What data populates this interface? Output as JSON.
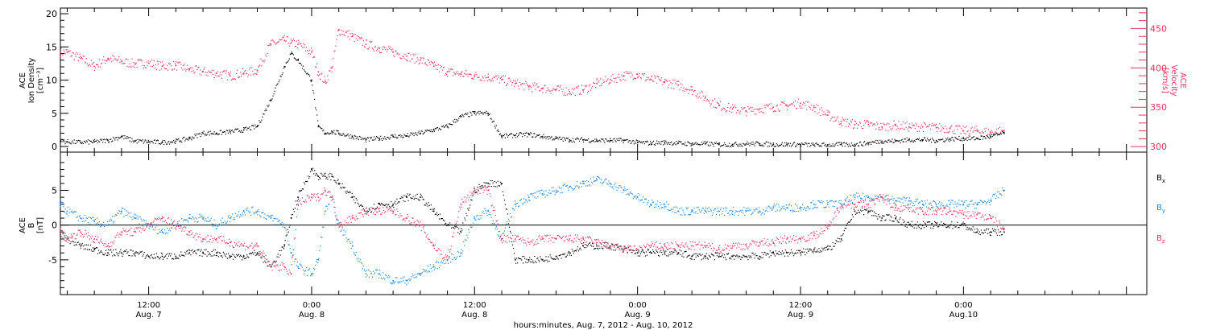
{
  "colors": {
    "black": "#000000",
    "pink": "#e8345f",
    "blue": "#1a86e0",
    "axis": "#000000"
  },
  "footer": {
    "xlabel": "hours:minutes, Aug.  7, 2012 - Aug. 10, 2012"
  },
  "chart_data": [
    {
      "type": "scatter",
      "panel": "top",
      "ylabel_left": [
        "ACE",
        "Ion Density",
        "[cm⁻³]"
      ],
      "ylabel_right": [
        "ACE",
        "Velocity",
        "[km/s]"
      ],
      "x_unit": "hours since Aug. 7, 2012 00:00",
      "xlim": [
        5.5,
        85.5
      ],
      "ylim_left": [
        0,
        20
      ],
      "ylim_right": [
        293,
        476
      ],
      "yticks_left": [
        0,
        5,
        10,
        15,
        20
      ],
      "yticks_right": [
        300,
        350,
        400,
        450
      ],
      "xticks": [
        {
          "x": 12,
          "time": "12:00",
          "date": "Aug. 7"
        },
        {
          "x": 24,
          "time": "0:00",
          "date": "Aug. 8"
        },
        {
          "x": 36,
          "time": "12:00",
          "date": "Aug. 8"
        },
        {
          "x": 48,
          "time": "0:00",
          "date": "Aug. 9"
        },
        {
          "x": 60,
          "time": "12:00",
          "date": "Aug. 9"
        },
        {
          "x": 72,
          "time": "0:00",
          "date": "Aug.10"
        }
      ],
      "series": [
        {
          "color": "pink",
          "axis": "right",
          "x": [
            5.5,
            6,
            7,
            8,
            9,
            10,
            11,
            12,
            13,
            14,
            15,
            16,
            17,
            18,
            19,
            20,
            21,
            22,
            22.5,
            23,
            24,
            24.5,
            25,
            25.5,
            26,
            27,
            28,
            29,
            30,
            31,
            32,
            33,
            34,
            35,
            36,
            37,
            38,
            39,
            40,
            41,
            42,
            43,
            44,
            45,
            46,
            47,
            48,
            49,
            50,
            51,
            52,
            53,
            54,
            55,
            56,
            57,
            58,
            59,
            60,
            61,
            62,
            63,
            64,
            65,
            66,
            67,
            68,
            69,
            70,
            71,
            72,
            73,
            74,
            75
          ],
          "values": [
            420,
            420,
            412,
            402,
            412,
            408,
            405,
            406,
            402,
            403,
            398,
            395,
            393,
            390,
            393,
            397,
            430,
            435,
            432,
            430,
            420,
            395,
            382,
            400,
            448,
            440,
            430,
            425,
            420,
            415,
            410,
            402,
            395,
            392,
            390,
            388,
            385,
            380,
            376,
            374,
            372,
            370,
            372,
            380,
            385,
            390,
            392,
            385,
            382,
            378,
            372,
            362,
            352,
            348,
            345,
            348,
            350,
            352,
            355,
            350,
            340,
            332,
            328,
            328,
            325,
            327,
            325,
            325,
            324,
            323,
            320,
            320,
            318,
            320
          ]
        },
        {
          "color": "black",
          "axis": "left",
          "x": [
            5.5,
            6,
            7,
            8,
            9,
            10,
            11,
            12,
            13,
            14,
            15,
            16,
            17,
            18,
            19,
            20,
            21,
            22,
            22.5,
            23,
            24,
            24.5,
            25,
            25.5,
            26,
            27,
            28,
            29,
            30,
            31,
            32,
            33,
            34,
            35,
            36,
            37,
            38,
            39,
            40,
            41,
            42,
            43,
            44,
            45,
            46,
            47,
            48,
            49,
            50,
            51,
            52,
            53,
            54,
            55,
            56,
            57,
            58,
            59,
            60,
            61,
            62,
            63,
            64,
            65,
            66,
            67,
            68,
            69,
            70,
            71,
            72,
            73,
            74,
            75
          ],
          "values": [
            0.8,
            0.7,
            0.6,
            0.7,
            0.9,
            1.5,
            0.8,
            0.7,
            0.6,
            0.8,
            1.2,
            2.0,
            2.0,
            2.2,
            2.5,
            3.0,
            7.0,
            12.0,
            14.0,
            13.0,
            10.0,
            3.0,
            2.0,
            2.2,
            2.0,
            1.5,
            1.0,
            1.2,
            1.5,
            1.6,
            2.0,
            2.5,
            3.0,
            4.5,
            5.0,
            5.0,
            1.5,
            1.7,
            1.8,
            1.5,
            1.2,
            1.0,
            1.0,
            0.9,
            0.9,
            0.9,
            0.6,
            0.5,
            0.6,
            0.5,
            0.4,
            0.4,
            0.3,
            0.3,
            0.4,
            0.4,
            0.3,
            0.3,
            0.3,
            0.2,
            0.2,
            0.3,
            0.3,
            0.5,
            0.8,
            0.8,
            1.0,
            1.0,
            0.9,
            1.1,
            1.2,
            1.2,
            1.5,
            2.0
          ]
        }
      ]
    },
    {
      "type": "scatter",
      "panel": "bottom",
      "ylabel_left": [
        "ACE",
        "B",
        "[nT]"
      ],
      "x_unit": "hours since Aug. 7, 2012 00:00",
      "xlim": [
        5.5,
        85.5
      ],
      "ylim": [
        -10,
        10.5
      ],
      "yticks": [
        -5,
        0,
        5
      ],
      "zero_line": true,
      "legend_placement": "right",
      "series": [
        {
          "name": "Bx",
          "color": "black",
          "x": [
            5.5,
            6,
            7,
            8,
            9,
            10,
            11,
            12,
            13,
            14,
            15,
            16,
            17,
            18,
            19,
            20,
            21,
            22,
            22.5,
            23,
            24,
            24.5,
            25,
            25.5,
            26,
            27,
            28,
            29,
            30,
            31,
            32,
            33,
            34,
            35,
            36,
            37,
            38,
            39,
            40,
            41,
            42,
            43,
            44,
            45,
            46,
            47,
            48,
            49,
            50,
            51,
            52,
            53,
            54,
            55,
            56,
            57,
            58,
            59,
            60,
            61,
            62,
            63,
            64,
            65,
            66,
            67,
            68,
            69,
            70,
            71,
            72,
            73,
            74,
            75
          ],
          "values": [
            -1,
            -2,
            -3,
            -3.5,
            -4,
            -4,
            -4,
            -4.5,
            -4.5,
            -4.5,
            -4,
            -4,
            -4,
            -4.5,
            -4.5,
            -4,
            -6,
            -3,
            1,
            4,
            8,
            7,
            7,
            7,
            6,
            4,
            2,
            3,
            3,
            4,
            4,
            2,
            0,
            -1,
            5,
            6,
            6,
            -5,
            -5,
            -5,
            -4.5,
            -4,
            -3,
            -3,
            -3,
            -3.5,
            -4,
            -4,
            -4,
            -4,
            -4.5,
            -4.5,
            -4.5,
            -4.5,
            -4.5,
            -4.5,
            -4,
            -4,
            -4,
            -3.5,
            -3.5,
            -2,
            2,
            2,
            1,
            1,
            0,
            0,
            0,
            0,
            0,
            -1,
            -1,
            -1
          ]
        },
        {
          "name": "By",
          "color": "blue",
          "x": [
            5.5,
            6,
            7,
            8,
            9,
            10,
            11,
            12,
            13,
            14,
            15,
            16,
            17,
            18,
            19,
            20,
            21,
            22,
            22.5,
            23,
            24,
            24.5,
            25,
            25.5,
            26,
            27,
            28,
            29,
            30,
            31,
            32,
            33,
            34,
            35,
            36,
            37,
            38,
            39,
            40,
            41,
            42,
            43,
            44,
            45,
            46,
            47,
            48,
            49,
            50,
            51,
            52,
            53,
            54,
            55,
            56,
            57,
            58,
            59,
            60,
            61,
            62,
            63,
            64,
            65,
            66,
            67,
            68,
            69,
            70,
            71,
            72,
            73,
            74,
            75
          ],
          "values": [
            3,
            2,
            1,
            0.5,
            0,
            2,
            1,
            0,
            -1,
            0,
            1,
            1,
            0,
            1,
            2,
            2,
            1,
            0,
            -4,
            -6,
            -7,
            -5,
            2,
            4,
            0,
            -3,
            -7,
            -7,
            -8,
            -8,
            -7,
            -6,
            -5,
            -4,
            1,
            2,
            -2,
            3,
            4,
            4.5,
            5,
            5.5,
            6,
            6.5,
            6,
            5,
            4,
            3,
            3,
            2,
            2,
            2,
            2,
            2,
            2,
            2,
            2.5,
            2.5,
            2.5,
            3,
            3,
            3,
            4,
            4,
            4,
            3.5,
            3.5,
            3,
            3,
            3,
            3,
            3,
            3.5,
            5
          ]
        },
        {
          "name": "Bz",
          "color": "pink",
          "x": [
            5.5,
            6,
            7,
            8,
            9,
            10,
            11,
            12,
            13,
            14,
            15,
            16,
            17,
            18,
            19,
            20,
            21,
            22,
            22.5,
            23,
            24,
            24.5,
            25,
            25.5,
            26,
            27,
            28,
            29,
            30,
            31,
            32,
            33,
            34,
            35,
            36,
            37,
            38,
            39,
            40,
            41,
            42,
            43,
            44,
            45,
            46,
            47,
            48,
            49,
            50,
            51,
            52,
            53,
            54,
            55,
            56,
            57,
            58,
            59,
            60,
            61,
            62,
            63,
            64,
            65,
            66,
            67,
            68,
            69,
            70,
            71,
            72,
            73,
            74,
            75
          ],
          "values": [
            -1,
            -2,
            -1,
            -2,
            -3,
            -1,
            -1,
            0,
            1,
            0,
            -1,
            -2,
            -2,
            -2.5,
            -3,
            -3,
            -6,
            -6,
            -7,
            3,
            4,
            4,
            5,
            4,
            0,
            1,
            2,
            2,
            2,
            1,
            0,
            -3,
            -5,
            3,
            5,
            5,
            -2,
            -2,
            -2.5,
            -2,
            -2,
            -2,
            -2,
            -2.5,
            -3,
            -3.5,
            -3.5,
            -3,
            -3,
            -3,
            -3,
            -3,
            -3.5,
            -3,
            -3,
            -2.5,
            -2.5,
            -2,
            -2,
            -1.5,
            -0.5,
            3,
            3,
            3,
            4,
            2.5,
            2.5,
            2,
            2,
            2,
            1.5,
            1.5,
            1,
            -0.5
          ]
        }
      ]
    }
  ]
}
